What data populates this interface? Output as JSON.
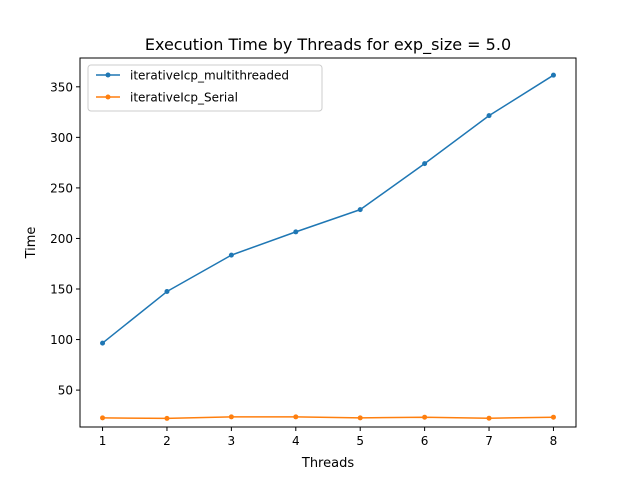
{
  "chart_data": {
    "type": "line",
    "title": "Execution Time by Threads for exp_size = 5.0",
    "xlabel": "Threads",
    "ylabel": "Time",
    "x": [
      1,
      2,
      3,
      4,
      5,
      6,
      7,
      8
    ],
    "xticks": [
      "1",
      "2",
      "3",
      "4",
      "5",
      "6",
      "7",
      "8"
    ],
    "yticks": [
      "50",
      "100",
      "150",
      "200",
      "250",
      "300",
      "350"
    ],
    "xlim": [
      0.65,
      8.35
    ],
    "ylim": [
      13.5,
      378.5
    ],
    "grid": false,
    "legend_position": "top-left",
    "series": [
      {
        "name": "iterativeIcp_multithreaded",
        "color": "#1f77b4",
        "values": [
          96.5,
          147.5,
          183.5,
          206.5,
          228.5,
          274,
          321.5,
          361.5
        ]
      },
      {
        "name": "iterativeIcp_Serial",
        "color": "#ff7f0e",
        "values": [
          22.5,
          22,
          23.5,
          23.5,
          22.5,
          23.2,
          22.2,
          23.2
        ]
      }
    ]
  }
}
